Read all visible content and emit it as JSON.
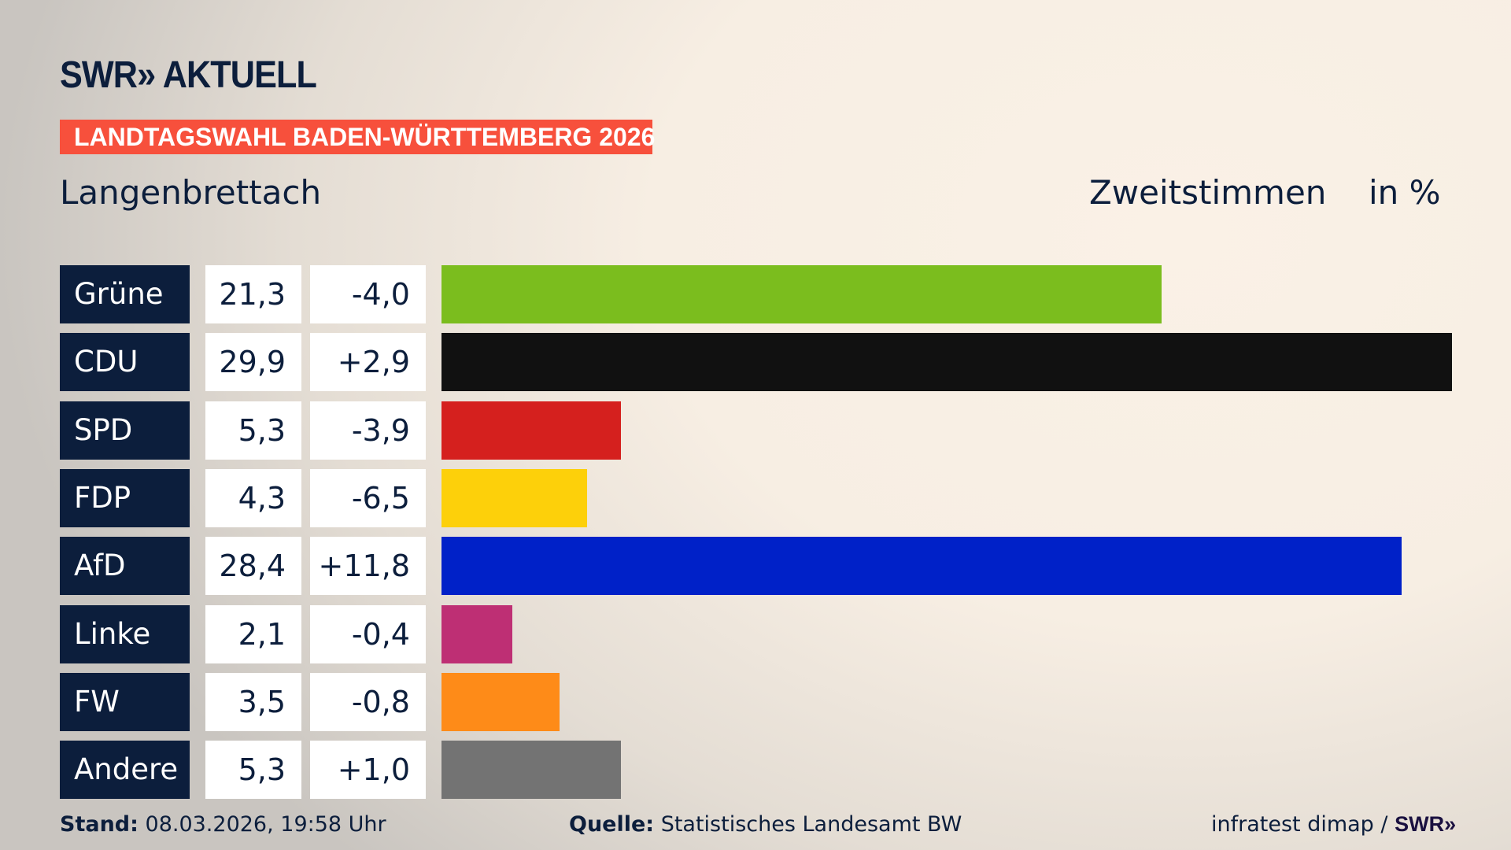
{
  "header": {
    "logo": "SWR» AKTUELL",
    "banner": "LANDTAGSWAHL BADEN-WÜRTTEMBERG 2026",
    "place": "Langenbrettach",
    "metric": "Zweitstimmen",
    "unit": "in %"
  },
  "chart_data": {
    "type": "bar",
    "orientation": "horizontal",
    "categories": [
      "Grüne",
      "CDU",
      "SPD",
      "FDP",
      "AfD",
      "Linke",
      "FW",
      "Andere"
    ],
    "values": [
      21.3,
      29.9,
      5.3,
      4.3,
      28.4,
      2.1,
      3.5,
      5.3
    ],
    "value_labels": [
      "21,3",
      "29,9",
      "5,3",
      "4,3",
      "28,4",
      "2,1",
      "3,5",
      "5,3"
    ],
    "changes": [
      -4.0,
      2.9,
      -3.9,
      -6.5,
      11.8,
      -0.4,
      -0.8,
      1.0
    ],
    "change_labels": [
      "-4,0",
      "+2,9",
      "-3,9",
      "-6,5",
      "+11,8",
      "-0,4",
      "-0,8",
      "+1,0"
    ],
    "colors": [
      "#7bbd1e",
      "#111111",
      "#d5201e",
      "#fdd00a",
      "#0021c8",
      "#be2f74",
      "#fe8b18",
      "#737373"
    ],
    "grid": false
  },
  "footer": {
    "stand_label": "Stand:",
    "stand_value": "08.03.2026, 19:58 Uhr",
    "source_label": "Quelle:",
    "source_value": "Statistisches Landesamt BW",
    "credit": "infratest dimap /",
    "credit_logo": "SWR»"
  }
}
